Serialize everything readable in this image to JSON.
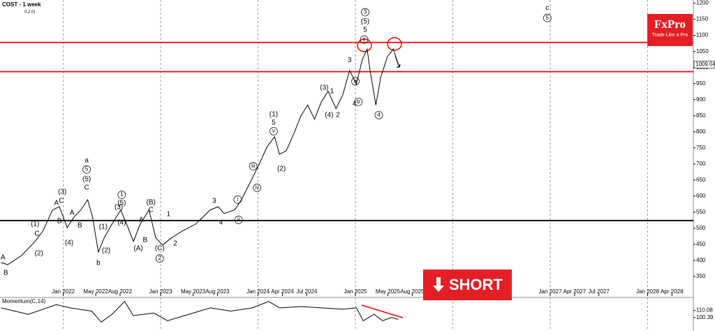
{
  "chart_data": [
    {
      "type": "line",
      "title": "COST - 1 week",
      "subtitle": "0,2.0)",
      "color": "#000000",
      "x": [
        2021.36,
        2021.43,
        2021.57,
        2021.71,
        2021.79,
        2021.89,
        2021.96,
        2022.04,
        2022.11,
        2022.18,
        2022.25,
        2022.3,
        2022.36,
        2022.42,
        2022.5,
        2022.59,
        2022.65,
        2022.72,
        2022.79,
        2022.88,
        2022.95,
        2023.02,
        2023.11,
        2023.22,
        2023.36,
        2023.51,
        2023.59,
        2023.65,
        2023.76,
        2023.83,
        2023.92,
        2024.01,
        2024.09,
        2024.17,
        2024.22,
        2024.29,
        2024.37,
        2024.44,
        2024.51,
        2024.58,
        2024.65,
        2024.72,
        2024.8,
        2024.87,
        2024.94,
        2025.01,
        2025.07,
        2025.12,
        2025.15,
        2025.21,
        2025.26,
        2025.33,
        2025.39,
        2025.44
      ],
      "values": [
        393,
        387,
        415,
        459,
        491,
        557,
        567,
        502,
        535,
        557,
        589,
        535,
        426,
        470,
        513,
        557,
        513,
        459,
        513,
        557,
        470,
        448,
        470,
        491,
        513,
        557,
        567,
        546,
        557,
        589,
        643,
        698,
        752,
        785,
        730,
        741,
        796,
        850,
        883,
        839,
        893,
        926,
        872,
        915,
        991,
        948,
        1024,
        1057,
        991,
        883,
        970,
        1035,
        1057,
        1009.04
      ],
      "last_price": 1009.04,
      "xlim": [
        2021.35,
        2028.47
      ],
      "ylim": [
        289,
        1210
      ],
      "yticks": [
        1200,
        1150,
        1100,
        1050,
        1000,
        950,
        900,
        850,
        800,
        750,
        700,
        650,
        600,
        550,
        500,
        450,
        400,
        350
      ],
      "xticks": [
        {
          "value": 2022.0,
          "label": "Jan 2022"
        },
        {
          "value": 2022.333,
          "label": "May 2022"
        },
        {
          "value": 2022.583,
          "label": "Aug 2022"
        },
        {
          "value": 2023.0,
          "label": "Jan 2023"
        },
        {
          "value": 2023.333,
          "label": "May 2023"
        },
        {
          "value": 2023.583,
          "label": "Aug 2023"
        },
        {
          "value": 2024.0,
          "label": "Jan 2024"
        },
        {
          "value": 2024.25,
          "label": "Apr 2024"
        },
        {
          "value": 2024.5,
          "label": "Jul 2024"
        },
        {
          "value": 2025.0,
          "label": "Jan 2025"
        },
        {
          "value": 2025.333,
          "label": "May 2025"
        },
        {
          "value": 2025.583,
          "label": "Aug 2025"
        },
        {
          "value": 2026.0,
          "label": "Jan 2026"
        },
        {
          "value": 2027.0,
          "label": "Jan 2027"
        },
        {
          "value": 2027.25,
          "label": "Apr 2027"
        },
        {
          "value": 2027.5,
          "label": "Jul 2027"
        },
        {
          "value": 2028.0,
          "label": "Jan 2028"
        },
        {
          "value": 2028.25,
          "label": "Apr 2028"
        }
      ],
      "grid": true,
      "hlines": [
        {
          "value": 1078,
          "color": "#ff0000"
        },
        {
          "value": 987,
          "color": "#ff0000"
        },
        {
          "value": 524,
          "color": "#000000"
        }
      ],
      "annotations": [
        {
          "text": "A",
          "x": 2021.38,
          "y": 409
        },
        {
          "text": "B",
          "x": 2021.41,
          "y": 361
        },
        {
          "text": "(2)",
          "x": 2021.75,
          "y": 422
        },
        {
          "text": "C",
          "x": 2021.73,
          "y": 483
        },
        {
          "text": "(1)",
          "x": 2021.71,
          "y": 513
        },
        {
          "text": "B",
          "x": 2021.96,
          "y": 522
        },
        {
          "text": "A",
          "x": 2021.93,
          "y": 578
        },
        {
          "text": "C",
          "x": 2021.98,
          "y": 585
        },
        {
          "text": "(3)",
          "x": 2021.99,
          "y": 613
        },
        {
          "text": "(4)",
          "x": 2022.06,
          "y": 454
        },
        {
          "text": "A",
          "x": 2022.09,
          "y": 548
        },
        {
          "text": "B",
          "x": 2022.17,
          "y": 509
        },
        {
          "text": "C",
          "x": 2022.24,
          "y": 626
        },
        {
          "text": "(5)",
          "x": 2022.24,
          "y": 652
        },
        {
          "text": "5",
          "x": 2022.24,
          "y": 683,
          "circled": true
        },
        {
          "text": "a",
          "x": 2022.24,
          "y": 711
        },
        {
          "text": "(1)",
          "x": 2022.41,
          "y": 504
        },
        {
          "text": "(2)",
          "x": 2022.44,
          "y": 430
        },
        {
          "text": "b",
          "x": 2022.36,
          "y": 391
        },
        {
          "text": "1",
          "x": 2022.6,
          "y": 604,
          "circled": true
        },
        {
          "text": "(5)",
          "x": 2022.6,
          "y": 578
        },
        {
          "text": "(3)",
          "x": 2022.57,
          "y": 565
        },
        {
          "text": "(4)",
          "x": 2022.6,
          "y": 517
        },
        {
          "text": "A",
          "x": 2022.8,
          "y": 526
        },
        {
          "text": "B",
          "x": 2022.84,
          "y": 463
        },
        {
          "text": "(A)",
          "x": 2022.77,
          "y": 437
        },
        {
          "text": "C",
          "x": 2022.9,
          "y": 557
        },
        {
          "text": "(B)",
          "x": 2022.9,
          "y": 580
        },
        {
          "text": "(C)",
          "x": 2022.99,
          "y": 437
        },
        {
          "text": "2",
          "x": 2022.99,
          "y": 406,
          "circled": true
        },
        {
          "text": "1",
          "x": 2023.08,
          "y": 543
        },
        {
          "text": "2",
          "x": 2023.15,
          "y": 452
        },
        {
          "text": "3",
          "x": 2023.55,
          "y": 585
        },
        {
          "text": "4",
          "x": 2023.62,
          "y": 517
        },
        {
          "text": "i",
          "x": 2023.79,
          "y": 589,
          "circled": true
        },
        {
          "text": "ii",
          "x": 2023.8,
          "y": 526,
          "circled": true
        },
        {
          "text": "iii",
          "x": 2023.95,
          "y": 693,
          "circled": true
        },
        {
          "text": "iv",
          "x": 2023.99,
          "y": 626,
          "circled": true
        },
        {
          "text": "(2)",
          "x": 2024.24,
          "y": 685
        },
        {
          "text": "v",
          "x": 2024.16,
          "y": 802,
          "circled": true
        },
        {
          "text": "5",
          "x": 2024.16,
          "y": 828
        },
        {
          "text": "(1)",
          "x": 2024.16,
          "y": 854
        },
        {
          "text": "(3)",
          "x": 2024.68,
          "y": 937
        },
        {
          "text": "1",
          "x": 2024.76,
          "y": 926
        },
        {
          "text": "(4)",
          "x": 2024.73,
          "y": 852
        },
        {
          "text": "2",
          "x": 2024.82,
          "y": 852
        },
        {
          "text": "3",
          "x": 2024.94,
          "y": 1022
        },
        {
          "text": "a",
          "x": 2025.0,
          "y": 957,
          "circled": true
        },
        {
          "text": "4",
          "x": 2024.99,
          "y": 887
        },
        {
          "text": "b",
          "x": 2025.03,
          "y": 893,
          "circled": true
        },
        {
          "text": "c",
          "x": 2025.09,
          "y": 1087,
          "circled": true
        },
        {
          "text": "5",
          "x": 2025.1,
          "y": 1117
        },
        {
          "text": "(5)",
          "x": 2025.1,
          "y": 1143
        },
        {
          "text": "3",
          "x": 2025.1,
          "y": 1172,
          "circled": true
        },
        {
          "text": "4",
          "x": 2025.24,
          "y": 852,
          "circled": true
        },
        {
          "text": "c",
          "x": 2026.97,
          "y": 1185
        },
        {
          "text": "5",
          "x": 2026.97,
          "y": 1154,
          "circled": true
        }
      ]
    },
    {
      "type": "line",
      "title": "Momentum(C,14)",
      "color": "#000000",
      "x": [
        2021.36,
        2021.64,
        2021.93,
        2022.07,
        2022.29,
        2022.39,
        2022.5,
        2022.63,
        2022.72,
        2022.93,
        2023.07,
        2023.29,
        2023.51,
        2023.72,
        2023.94,
        2024.11,
        2024.22,
        2024.44,
        2024.65,
        2024.87,
        2025.01,
        2025.08,
        2025.19,
        2025.28,
        2025.37,
        2025.44
      ],
      "values": [
        113.6,
        104.8,
        118.0,
        113.6,
        109.2,
        94.2,
        104.8,
        122.4,
        103.0,
        106.5,
        96.0,
        104.8,
        113.6,
        109.2,
        113.6,
        122.4,
        113.6,
        115.4,
        113.6,
        111.8,
        113.6,
        96.0,
        104.8,
        96.0,
        100.4,
        97.8
      ],
      "xlim": [
        2021.35,
        2028.47
      ],
      "ylim": [
        82,
        124
      ],
      "yticks": [
        110.08,
        100.39
      ]
    }
  ],
  "brand": {
    "name": "FxPro",
    "tagline": "Trade Like a Pro"
  },
  "signal": "SHORT"
}
